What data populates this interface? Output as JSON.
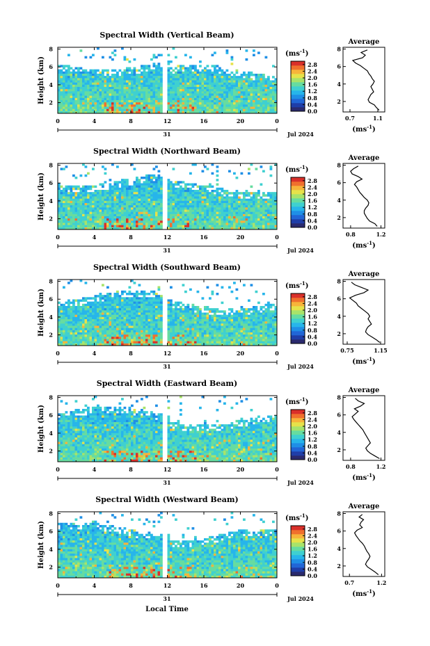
{
  "figure": {
    "x_axis_label": "Local Time",
    "date_label": "Jul 2024",
    "date_day": "31",
    "y_axis_label": "Height (km)",
    "colorbar_unit": "(ms",
    "colorbar_unit_sup": "-1",
    "colorbar_unit_close": ")",
    "profile_title": "Average",
    "profile_unit": "(ms",
    "profile_unit_sup": "-1",
    "profile_unit_close": ")"
  },
  "colors": {
    "colormap": [
      "#2a2a6e",
      "#1f3ea8",
      "#2166d6",
      "#1f8fe6",
      "#27b5ea",
      "#3fd0d0",
      "#66dca0",
      "#a8e36a",
      "#e6e24a",
      "#f7b43a",
      "#f0702d",
      "#d9302a"
    ]
  },
  "chart_data": [
    {
      "type": "heatmap",
      "title": "Spectral Width (Vertical Beam)",
      "x_ticks": [
        "0",
        "4",
        "8",
        "12",
        "16",
        "20",
        "0"
      ],
      "x_range_hours": [
        0,
        24
      ],
      "y_ticks": [
        "2",
        "4",
        "6",
        "8"
      ],
      "y_range_km": [
        0.8,
        8.2
      ],
      "colorbar_ticks": [
        "0.0",
        "0.4",
        "0.8",
        "1.2",
        "1.6",
        "2.0",
        "2.4",
        "2.8"
      ],
      "colorbar_range": [
        0.0,
        3.0
      ],
      "profile": {
        "title": "Average",
        "x_ticks": [
          "0.7",
          "1.1"
        ],
        "x_range": [
          0.6,
          1.2
        ],
        "y_ticks": [
          "2",
          "4",
          "6",
          "8"
        ],
        "heights_km": [
          1.0,
          1.3,
          1.6,
          1.9,
          2.2,
          2.5,
          2.8,
          3.1,
          3.4,
          3.7,
          4.0,
          4.3,
          4.6,
          4.9,
          5.2,
          5.5,
          5.8,
          6.1,
          6.4,
          6.7,
          7.0,
          7.3,
          7.6,
          7.9
        ],
        "values": [
          1.12,
          1.08,
          1.05,
          0.98,
          0.96,
          0.98,
          1.0,
          1.04,
          1.02,
          1.0,
          1.03,
          1.05,
          1.02,
          1.0,
          0.97,
          0.95,
          0.9,
          0.85,
          0.78,
          0.74,
          0.88,
          0.92,
          0.86,
          0.95
        ]
      }
    },
    {
      "type": "heatmap",
      "title": "Spectral Width (Northward Beam)",
      "x_ticks": [
        "0",
        "4",
        "8",
        "12",
        "16",
        "20",
        "0"
      ],
      "x_range_hours": [
        0,
        24
      ],
      "y_ticks": [
        "2",
        "4",
        "6",
        "8"
      ],
      "y_range_km": [
        0.8,
        8.2
      ],
      "colorbar_ticks": [
        "0.0",
        "0.4",
        "0.8",
        "1.2",
        "1.6",
        "2.0",
        "2.4",
        "2.8"
      ],
      "colorbar_range": [
        0.0,
        3.0
      ],
      "profile": {
        "title": "Average",
        "x_ticks": [
          "0.8",
          "1.2"
        ],
        "x_range": [
          0.7,
          1.25
        ],
        "y_ticks": [
          "2",
          "4",
          "6",
          "8"
        ],
        "heights_km": [
          1.0,
          1.3,
          1.6,
          1.9,
          2.2,
          2.5,
          2.8,
          3.1,
          3.4,
          3.7,
          4.0,
          4.3,
          4.6,
          4.9,
          5.2,
          5.5,
          5.8,
          6.1,
          6.4,
          6.7,
          7.0,
          7.3,
          7.6,
          7.9
        ],
        "values": [
          1.15,
          1.12,
          1.05,
          1.02,
          1.0,
          0.98,
          0.98,
          1.0,
          1.03,
          1.04,
          1.02,
          0.98,
          0.95,
          0.92,
          0.9,
          0.88,
          0.85,
          0.88,
          0.95,
          0.9,
          0.82,
          0.8,
          0.84,
          0.9
        ]
      }
    },
    {
      "type": "heatmap",
      "title": "Spectral Width (Southward Beam)",
      "x_ticks": [
        "0",
        "4",
        "8",
        "12",
        "16",
        "20",
        "0"
      ],
      "x_range_hours": [
        0,
        24
      ],
      "y_ticks": [
        "2",
        "4",
        "6",
        "8"
      ],
      "y_range_km": [
        0.8,
        8.2
      ],
      "colorbar_ticks": [
        "0.0",
        "0.4",
        "0.8",
        "1.2",
        "1.6",
        "2.0",
        "2.4",
        "2.8"
      ],
      "colorbar_range": [
        0.0,
        3.0
      ],
      "profile": {
        "title": "Average",
        "x_ticks": [
          "0.75",
          "1.15"
        ],
        "x_range": [
          0.7,
          1.2
        ],
        "y_ticks": [
          "2",
          "4",
          "6",
          "8"
        ],
        "heights_km": [
          1.0,
          1.3,
          1.6,
          1.9,
          2.2,
          2.5,
          2.8,
          3.1,
          3.4,
          3.7,
          4.0,
          4.3,
          4.6,
          4.9,
          5.2,
          5.5,
          5.8,
          6.1,
          6.4,
          6.7,
          7.0,
          7.3,
          7.6,
          7.9
        ],
        "values": [
          1.14,
          1.1,
          1.05,
          1.0,
          0.97,
          0.98,
          1.0,
          1.04,
          1.02,
          1.0,
          1.02,
          1.0,
          0.96,
          0.92,
          0.88,
          0.86,
          0.82,
          0.78,
          0.85,
          0.95,
          1.0,
          0.92,
          0.84,
          0.8
        ]
      }
    },
    {
      "type": "heatmap",
      "title": "Spectral Width (Eastward Beam)",
      "x_ticks": [
        "0",
        "4",
        "8",
        "12",
        "16",
        "20",
        "0"
      ],
      "x_range_hours": [
        0,
        24
      ],
      "y_ticks": [
        "2",
        "4",
        "6",
        "8"
      ],
      "y_range_km": [
        0.8,
        8.2
      ],
      "colorbar_ticks": [
        "0.0",
        "0.4",
        "0.8",
        "1.2",
        "1.6",
        "2.0",
        "2.4",
        "2.8"
      ],
      "colorbar_range": [
        0.0,
        3.0
      ],
      "profile": {
        "title": "Average",
        "x_ticks": [
          "0.8",
          "1.2"
        ],
        "x_range": [
          0.7,
          1.25
        ],
        "y_ticks": [
          "2",
          "4",
          "6",
          "8"
        ],
        "heights_km": [
          1.0,
          1.3,
          1.6,
          1.9,
          2.2,
          2.5,
          2.8,
          3.1,
          3.4,
          3.7,
          4.0,
          4.3,
          4.6,
          4.9,
          5.2,
          5.5,
          5.8,
          6.1,
          6.4,
          6.7,
          7.0,
          7.3,
          7.6,
          7.9
        ],
        "values": [
          1.18,
          1.12,
          1.06,
          1.02,
          1.0,
          1.03,
          1.06,
          1.04,
          1.02,
          1.0,
          0.98,
          0.96,
          0.93,
          0.9,
          0.87,
          0.84,
          0.82,
          0.86,
          0.9,
          0.85,
          0.93,
          0.98,
          0.9,
          0.86
        ]
      }
    },
    {
      "type": "heatmap",
      "title": "Spectral Width (Westward Beam)",
      "x_ticks": [
        "0",
        "4",
        "8",
        "12",
        "16",
        "20",
        "0"
      ],
      "x_range_hours": [
        0,
        24
      ],
      "y_ticks": [
        "2",
        "4",
        "6",
        "8"
      ],
      "y_range_km": [
        0.8,
        8.2
      ],
      "colorbar_ticks": [
        "0.0",
        "0.4",
        "0.8",
        "1.2",
        "1.6",
        "2.0",
        "2.4",
        "2.8"
      ],
      "colorbar_range": [
        0.0,
        3.0
      ],
      "profile": {
        "title": "Average",
        "x_ticks": [
          "0.7",
          "1.2"
        ],
        "x_range": [
          0.6,
          1.25
        ],
        "y_ticks": [
          "2",
          "4",
          "6",
          "8"
        ],
        "heights_km": [
          1.0,
          1.3,
          1.6,
          1.9,
          2.2,
          2.5,
          2.8,
          3.1,
          3.4,
          3.7,
          4.0,
          4.3,
          4.6,
          4.9,
          5.2,
          5.5,
          5.8,
          6.1,
          6.4,
          6.7,
          7.0,
          7.3,
          7.6,
          7.9
        ],
        "values": [
          1.15,
          1.1,
          1.04,
          0.98,
          0.95,
          0.97,
          1.0,
          1.02,
          1.0,
          0.97,
          0.95,
          0.93,
          0.9,
          0.86,
          0.83,
          0.8,
          0.78,
          0.82,
          0.9,
          0.86,
          0.88,
          0.92,
          0.85,
          0.9
        ]
      }
    }
  ]
}
